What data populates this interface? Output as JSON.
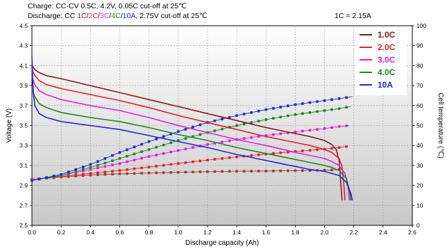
{
  "header": {
    "charge_line": "Charge: CC-CV 0.5C, 4.2V, 0.05C cut-off at 25℃",
    "discharge_prefix": "Discharge: CC ",
    "rates": [
      {
        "text": "1C",
        "color": "#8b1a1a"
      },
      {
        "text": "2C",
        "color": "#e8202a"
      },
      {
        "text": "3C",
        "color": "#e020e0"
      },
      {
        "text": "4C",
        "color": "#1a8a1a"
      },
      {
        "text": "10A",
        "color": "#1a2ae0"
      }
    ],
    "discharge_suffix": ", 2.75V cut-off  at 25℃",
    "capacity_note": "1C = 2.15A"
  },
  "chart_data": {
    "type": "line",
    "xlabel": "Discharge capacity (Ah)",
    "ylabel": "Voltage (V)",
    "y2label": "Cell temperature (℃)",
    "xlim": [
      0.0,
      2.6
    ],
    "ylim": [
      2.5,
      4.5
    ],
    "y2lim": [
      0,
      100
    ],
    "xticks": [
      "0.0",
      "0.2",
      "0.4",
      "0.6",
      "0.8",
      "1.0",
      "1.2",
      "1.4",
      "1.6",
      "1.8",
      "2.0",
      "2.2",
      "2.4",
      "2.6"
    ],
    "yticks": [
      "2.5",
      "2.7",
      "2.9",
      "3.1",
      "3.3",
      "3.5",
      "3.7",
      "3.9",
      "4.1",
      "4.3",
      "4.5"
    ],
    "y2ticks": [
      "0",
      "10",
      "20",
      "30",
      "40",
      "50",
      "60",
      "70",
      "80",
      "90",
      "100"
    ],
    "grid": true,
    "legend_position": "top-right",
    "voltage_series": [
      {
        "name": "1.0C",
        "color": "#8b1a1a",
        "x": [
          0.0,
          0.02,
          0.05,
          0.1,
          0.2,
          0.4,
          0.6,
          0.8,
          1.0,
          1.2,
          1.4,
          1.6,
          1.8,
          1.9,
          2.0,
          2.05,
          2.08,
          2.1,
          2.11,
          2.12
        ],
        "y": [
          4.1,
          4.06,
          4.03,
          4.0,
          3.97,
          3.9,
          3.83,
          3.76,
          3.69,
          3.62,
          3.55,
          3.48,
          3.42,
          3.39,
          3.35,
          3.31,
          3.26,
          3.15,
          2.95,
          2.75
        ]
      },
      {
        "name": "2.0C",
        "color": "#e8202a",
        "x": [
          0.0,
          0.02,
          0.05,
          0.1,
          0.2,
          0.4,
          0.6,
          0.8,
          1.0,
          1.2,
          1.4,
          1.6,
          1.8,
          1.9,
          2.0,
          2.05,
          2.1,
          2.12,
          2.13,
          2.14
        ],
        "y": [
          4.06,
          4.0,
          3.95,
          3.91,
          3.87,
          3.81,
          3.75,
          3.68,
          3.6,
          3.53,
          3.46,
          3.39,
          3.33,
          3.3,
          3.26,
          3.23,
          3.17,
          3.09,
          2.95,
          2.75
        ]
      },
      {
        "name": "3.0C",
        "color": "#e020e0",
        "x": [
          0.0,
          0.02,
          0.05,
          0.1,
          0.2,
          0.4,
          0.6,
          0.8,
          1.0,
          1.2,
          1.4,
          1.6,
          1.8,
          1.9,
          2.0,
          2.05,
          2.1,
          2.14,
          2.16,
          2.17
        ],
        "y": [
          3.99,
          3.91,
          3.85,
          3.81,
          3.76,
          3.7,
          3.65,
          3.58,
          3.5,
          3.43,
          3.36,
          3.3,
          3.23,
          3.2,
          3.17,
          3.14,
          3.1,
          3.02,
          2.9,
          2.75
        ]
      },
      {
        "name": "4.0C",
        "color": "#1a8a1a",
        "x": [
          0.0,
          0.02,
          0.05,
          0.1,
          0.2,
          0.4,
          0.6,
          0.8,
          1.0,
          1.2,
          1.4,
          1.6,
          1.8,
          1.9,
          2.0,
          2.05,
          2.1,
          2.15,
          2.17,
          2.18
        ],
        "y": [
          3.87,
          3.79,
          3.72,
          3.68,
          3.63,
          3.58,
          3.54,
          3.48,
          3.41,
          3.35,
          3.28,
          3.22,
          3.16,
          3.13,
          3.1,
          3.08,
          3.05,
          2.97,
          2.85,
          2.75
        ]
      },
      {
        "name": "10A",
        "color": "#1a2ae0",
        "x": [
          0.0,
          0.005,
          0.01,
          0.02,
          0.05,
          0.1,
          0.2,
          0.4,
          0.6,
          0.8,
          1.0,
          1.2,
          1.4,
          1.6,
          1.8,
          1.9,
          2.0,
          2.05,
          2.1,
          2.15,
          2.18,
          2.19
        ],
        "y": [
          4.2,
          3.95,
          3.82,
          3.7,
          3.62,
          3.58,
          3.54,
          3.5,
          3.46,
          3.4,
          3.34,
          3.28,
          3.21,
          3.15,
          3.09,
          3.06,
          3.04,
          3.02,
          3.0,
          2.93,
          2.82,
          2.75
        ]
      }
    ],
    "temperature_series": [
      {
        "name": "1.0C",
        "color": "#a83a2a",
        "x": [
          0.0,
          0.2,
          0.4,
          0.6,
          0.8,
          1.0,
          1.2,
          1.4,
          1.6,
          1.8,
          2.0,
          2.12
        ],
        "y": [
          23,
          24.2,
          25.2,
          25.8,
          26.2,
          26.6,
          26.9,
          27.1,
          27.2,
          27.4,
          27.6,
          28
        ]
      },
      {
        "name": "2.0C",
        "color": "#e8202a",
        "x": [
          0.0,
          0.2,
          0.4,
          0.6,
          0.8,
          1.0,
          1.2,
          1.4,
          1.6,
          1.8,
          2.0,
          2.1,
          2.15
        ],
        "y": [
          23,
          24.5,
          26,
          27.5,
          29.2,
          31,
          32.7,
          34.3,
          35.7,
          37,
          38.2,
          39,
          39.5
        ]
      },
      {
        "name": "3.0C",
        "color": "#e020e0",
        "x": [
          0.0,
          0.2,
          0.4,
          0.6,
          0.8,
          1.0,
          1.2,
          1.4,
          1.6,
          1.8,
          2.0,
          2.1,
          2.17
        ],
        "y": [
          22.8,
          25,
          28,
          31,
          34.5,
          37.5,
          40.5,
          43,
          45,
          46.8,
          48.5,
          49.5,
          50
        ]
      },
      {
        "name": "4.0C",
        "color": "#1a8a1a",
        "x": [
          0.0,
          0.2,
          0.4,
          0.6,
          0.8,
          1.0,
          1.2,
          1.4,
          1.6,
          1.8,
          2.0,
          2.1,
          2.18
        ],
        "y": [
          22.5,
          25,
          29,
          33.5,
          38,
          42.5,
          46.5,
          50,
          53,
          55.5,
          57.5,
          58.5,
          59.5
        ]
      },
      {
        "name": "10A",
        "color": "#1a2ae0",
        "x": [
          0.0,
          0.2,
          0.4,
          0.6,
          0.8,
          1.0,
          1.2,
          1.4,
          1.6,
          1.8,
          2.0,
          2.1,
          2.19
        ],
        "y": [
          22.5,
          25.5,
          30.5,
          36.5,
          42,
          47,
          51.5,
          55,
          58,
          60.5,
          62.5,
          63.5,
          64.5
        ]
      }
    ]
  }
}
